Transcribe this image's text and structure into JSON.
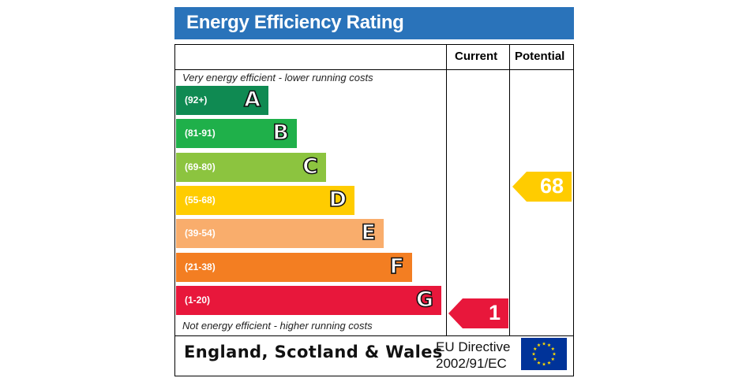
{
  "title": "Energy Efficiency Rating",
  "columns": {
    "current": "Current",
    "potential": "Potential"
  },
  "captions": {
    "top": "Very energy efficient - lower running costs",
    "bottom": "Not energy efficient - higher running costs"
  },
  "footer": {
    "region": "England, Scotland & Wales",
    "directive_line1": "EU Directive",
    "directive_line2": "2002/91/EC",
    "flag_icon": "eu-flag-icon"
  },
  "colors": {
    "title_bar": "#2a73ba",
    "eu_flag": "#003399",
    "eu_star": "#ffdd00"
  },
  "chart_data": {
    "type": "bar",
    "title": "Energy Efficiency Rating",
    "categories": [
      "A",
      "B",
      "C",
      "D",
      "E",
      "F",
      "G"
    ],
    "ranges": [
      "(92+)",
      "(81-91)",
      "(69-80)",
      "(55-68)",
      "(39-54)",
      "(21-38)",
      "(1-20)"
    ],
    "colors": [
      "#0f8a52",
      "#1fb04a",
      "#8cc43f",
      "#ffcc00",
      "#f9ad6c",
      "#f37e22",
      "#e8173b"
    ],
    "current": {
      "value": 1,
      "band": "G",
      "color": "#e8173b"
    },
    "potential": {
      "value": 68,
      "band": "D",
      "color": "#ffcc00"
    }
  }
}
